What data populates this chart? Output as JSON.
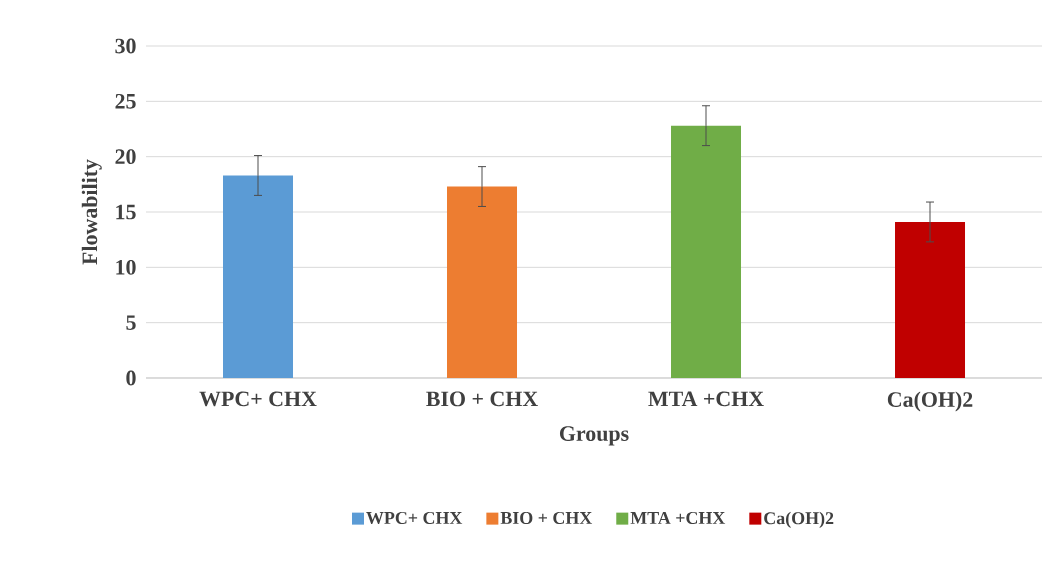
{
  "chart_data": {
    "type": "bar",
    "xlabel": "Groups",
    "ylabel": "Flowability",
    "categories": [
      "WPC+ CHX",
      "BIO + CHX",
      "MTA +CHX",
      "Ca(OH)2"
    ],
    "series": [
      {
        "name": "WPC+ CHX",
        "color": "#5b9bd5",
        "values": [
          18.3,
          null,
          null,
          null
        ],
        "errors": [
          1.8,
          null,
          null,
          null
        ]
      },
      {
        "name": "BIO + CHX",
        "color": "#ed7d31",
        "values": [
          null,
          17.3,
          null,
          null
        ],
        "errors": [
          null,
          1.8,
          null,
          null
        ]
      },
      {
        "name": "MTA +CHX",
        "color": "#70ad47",
        "values": [
          null,
          null,
          22.8,
          null
        ],
        "errors": [
          null,
          null,
          1.8,
          null
        ]
      },
      {
        "name": "Ca(OH)2",
        "color": "#c00000",
        "values": [
          null,
          null,
          null,
          14.1
        ],
        "errors": [
          null,
          null,
          null,
          1.8
        ]
      }
    ],
    "ylim": [
      0,
      30
    ],
    "yticks": [
      0,
      5,
      10,
      15,
      20,
      25,
      30
    ],
    "grid": "y",
    "legend": "bottom"
  }
}
